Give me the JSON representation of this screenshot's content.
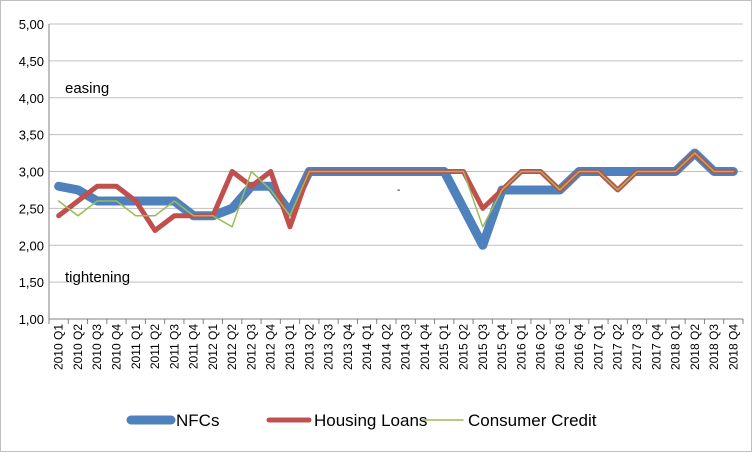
{
  "chart_data": {
    "type": "line",
    "title": "",
    "xlabel": "",
    "ylabel": "",
    "ylim": [
      1.0,
      5.0
    ],
    "yticks": [
      "1,00",
      "1,50",
      "2,00",
      "2,50",
      "3,00",
      "3,50",
      "4,00",
      "4,50",
      "5,00"
    ],
    "grid": "horizontal",
    "legend_position": "bottom",
    "annotations": {
      "top": "easing",
      "bottom": "tightening"
    },
    "stray_mark": "-",
    "x": [
      "2010 Q1",
      "2010 Q2",
      "2010 Q3",
      "2010 Q4",
      "2011 Q1",
      "2011 Q2",
      "2011 Q3",
      "2011 Q4",
      "2012 Q1",
      "2012 Q2",
      "2012 Q3",
      "2012 Q4",
      "2013 Q1",
      "2013 Q2",
      "2013 Q3",
      "2013 Q4",
      "2014 Q1",
      "2014 Q2",
      "2014 Q3",
      "2014 Q4",
      "2015 Q1",
      "2015 Q2",
      "2015 Q3",
      "2015 Q4",
      "2016 Q1",
      "2016 Q2",
      "2016 Q3",
      "2016 Q4",
      "2017 Q1",
      "2017 Q2",
      "2017 Q3",
      "2017 Q4",
      "2018 Q1",
      "2018 Q2",
      "2018 Q3",
      "2018 Q4"
    ],
    "series": [
      {
        "name": "NFCs",
        "color": "#4f81bd",
        "values": [
          2.8,
          2.75,
          2.6,
          2.6,
          2.6,
          2.6,
          2.6,
          2.4,
          2.4,
          2.5,
          2.8,
          2.8,
          2.45,
          3.0,
          3.0,
          3.0,
          3.0,
          3.0,
          3.0,
          3.0,
          3.0,
          2.5,
          2.0,
          2.75,
          2.75,
          2.75,
          2.75,
          3.0,
          3.0,
          3.0,
          3.0,
          3.0,
          3.0,
          3.25,
          3.0,
          3.0
        ]
      },
      {
        "name": "Housing Loans",
        "color": "#c0504d",
        "values": [
          2.4,
          2.6,
          2.8,
          2.8,
          2.6,
          2.2,
          2.4,
          2.4,
          2.4,
          3.0,
          2.8,
          3.0,
          2.25,
          3.0,
          3.0,
          3.0,
          3.0,
          3.0,
          3.0,
          3.0,
          3.0,
          3.0,
          2.5,
          2.75,
          3.0,
          3.0,
          2.75,
          3.0,
          3.0,
          2.75,
          3.0,
          3.0,
          3.0,
          3.25,
          3.0,
          3.0
        ]
      },
      {
        "name": "Consumer Credit",
        "color": "#9bbb59",
        "values": [
          2.6,
          2.4,
          2.6,
          2.6,
          2.4,
          2.4,
          2.6,
          2.4,
          2.4,
          2.25,
          3.0,
          2.75,
          2.4,
          3.0,
          3.0,
          3.0,
          3.0,
          3.0,
          3.0,
          3.0,
          3.0,
          3.0,
          2.25,
          2.75,
          3.0,
          3.0,
          2.75,
          3.0,
          3.0,
          2.75,
          3.0,
          3.0,
          3.0,
          3.25,
          3.0,
          3.0
        ]
      }
    ]
  }
}
